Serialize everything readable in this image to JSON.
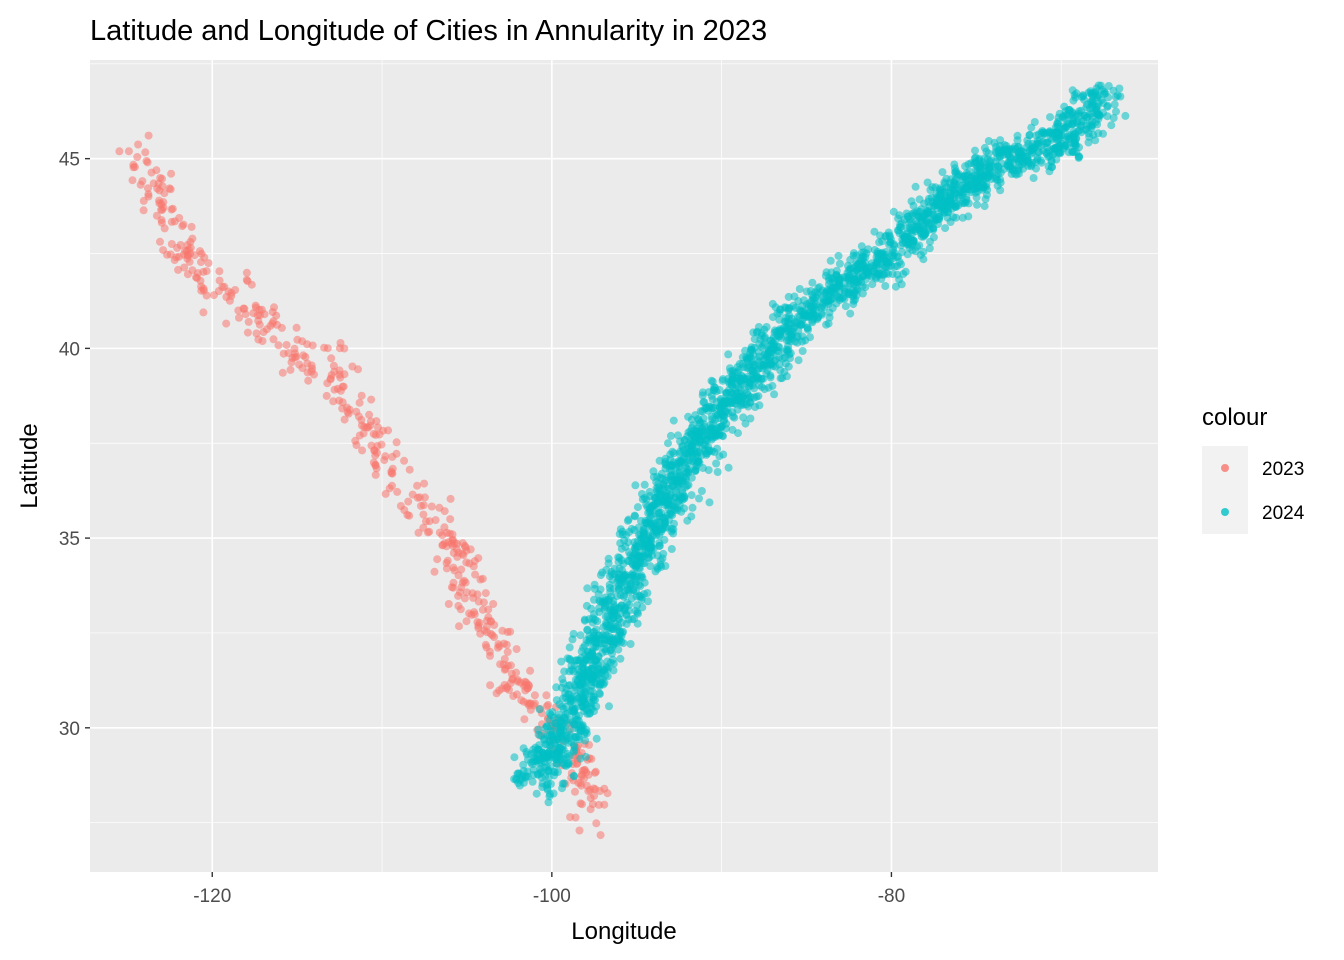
{
  "chart_data": {
    "type": "scatter",
    "title": "Latitude and Longitude of Cities in Annularity in 2023",
    "xlabel": "Longitude",
    "ylabel": "Latitude",
    "xlim": [
      -127.2,
      -64.3
    ],
    "ylim": [
      26.2,
      47.6
    ],
    "x_ticks": [
      -120,
      -100,
      -80
    ],
    "y_ticks": [
      30,
      35,
      40,
      45
    ],
    "x_tick_labels": [
      "-120",
      "-100",
      "-80"
    ],
    "y_tick_labels": [
      "30",
      "35",
      "40",
      "45"
    ],
    "grid": true,
    "legend": {
      "title": "colour",
      "position": "right"
    },
    "series": [
      {
        "name": "2023",
        "color": "#F8766D",
        "path": [
          [
            -124.3,
            44.9
          ],
          [
            -123.5,
            44.3
          ],
          [
            -122.6,
            43.2
          ],
          [
            -121.4,
            42.3
          ],
          [
            -119.5,
            41.6
          ],
          [
            -117.5,
            40.8
          ],
          [
            -115.0,
            39.8
          ],
          [
            -112.5,
            39.2
          ],
          [
            -111.6,
            38.2
          ],
          [
            -110.1,
            37.3
          ],
          [
            -108.3,
            36.3
          ],
          [
            -106.5,
            35.4
          ],
          [
            -104.8,
            33.6
          ],
          [
            -103.4,
            32.4
          ],
          [
            -102.0,
            31.1
          ],
          [
            -100.3,
            30.2
          ],
          [
            -98.7,
            29.4
          ],
          [
            -98.0,
            28.6
          ],
          [
            -97.6,
            27.6
          ]
        ],
        "n_points": 520
      },
      {
        "name": "2024",
        "color": "#00BFC4",
        "path": [
          [
            -101.0,
            28.6
          ],
          [
            -99.4,
            29.8
          ],
          [
            -97.8,
            31.6
          ],
          [
            -95.6,
            33.8
          ],
          [
            -93.4,
            35.9
          ],
          [
            -91.0,
            37.8
          ],
          [
            -88.2,
            39.4
          ],
          [
            -85.5,
            40.8
          ],
          [
            -83.0,
            41.6
          ],
          [
            -80.2,
            42.5
          ],
          [
            -78.5,
            43.2
          ],
          [
            -75.8,
            44.3
          ],
          [
            -73.4,
            45.0
          ],
          [
            -71.0,
            45.2
          ],
          [
            -68.8,
            46.0
          ],
          [
            -67.5,
            46.8
          ]
        ],
        "n_points": 2600
      }
    ]
  }
}
